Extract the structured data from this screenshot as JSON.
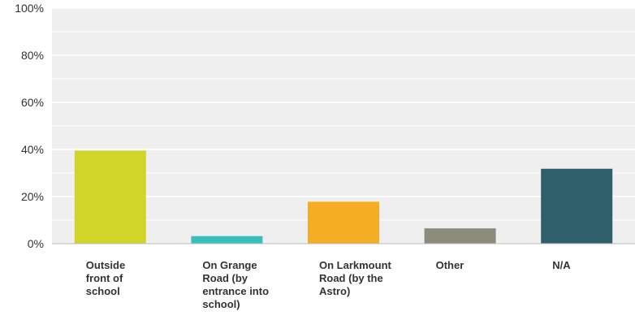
{
  "chart_data": {
    "type": "bar",
    "categories": [
      [
        "Outside",
        "front of",
        "school"
      ],
      [
        "On Grange",
        "Road (by",
        "entrance into",
        "school)"
      ],
      [
        "On Larkmount",
        "Road (by the",
        "Astro)"
      ],
      [
        "Other"
      ],
      [
        "N/A"
      ]
    ],
    "values": [
      39.5,
      3.2,
      17.8,
      6.5,
      31.8
    ],
    "colors": [
      "#d1d52a",
      "#35bfbf",
      "#f5ae24",
      "#8c8c7c",
      "#2e5f6b"
    ],
    "ylim": [
      0,
      100
    ],
    "yticks": [
      "0%",
      "20%",
      "40%",
      "60%",
      "80%",
      "100%"
    ],
    "ytick_values": [
      0,
      20,
      40,
      60,
      80,
      100
    ],
    "grid": true,
    "title": "",
    "xlabel": "",
    "ylabel": ""
  }
}
